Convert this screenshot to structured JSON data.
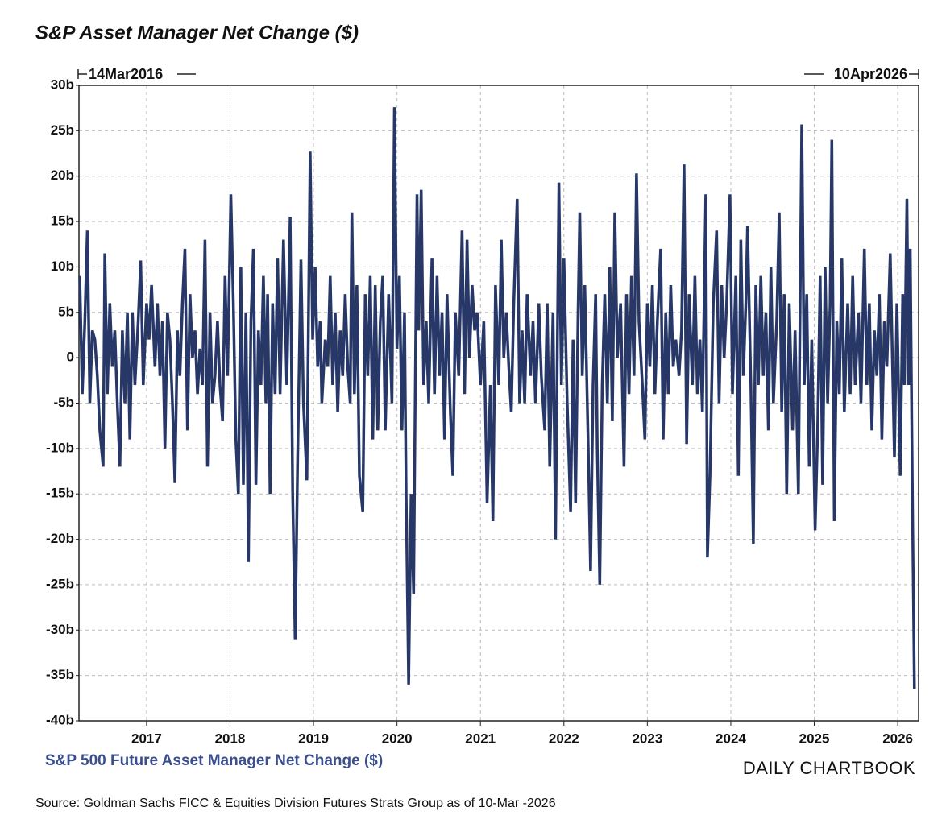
{
  "chart_data": {
    "type": "line",
    "title": "S&P Asset Manager Net Change ($)",
    "start_label": "14Mar2016",
    "end_label": "10Apr2026",
    "source": "Source: Goldman Sachs FICC & Equities Division Futures Strats Group as of 10-Mar -2026",
    "watermark": "DAILY CHARTBOOK",
    "xlim": [
      2016.19,
      2026.25
    ],
    "xticks": [
      2017,
      2018,
      2019,
      2020,
      2021,
      2022,
      2023,
      2024,
      2025,
      2026
    ],
    "ylim": [
      -40,
      30
    ],
    "yticks": [
      {
        "value": -40,
        "label": "-40b"
      },
      {
        "value": -35,
        "label": "-35b"
      },
      {
        "value": -30,
        "label": "-30b"
      },
      {
        "value": -25,
        "label": "-25b"
      },
      {
        "value": -20,
        "label": "-20b"
      },
      {
        "value": -15,
        "label": "-15b"
      },
      {
        "value": -10,
        "label": "-10b"
      },
      {
        "value": -5,
        "label": "-5b"
      },
      {
        "value": 0,
        "label": "0"
      },
      {
        "value": 5,
        "label": "5b"
      },
      {
        "value": 10,
        "label": "10b"
      },
      {
        "value": 15,
        "label": "15b"
      },
      {
        "value": 20,
        "label": "20b"
      },
      {
        "value": 25,
        "label": "25b"
      },
      {
        "value": 30,
        "label": "30b"
      }
    ],
    "grid": true,
    "x": [
      2016.2,
      2016.23,
      2016.26,
      2016.29,
      2016.32,
      2016.35,
      2016.38,
      2016.41,
      2016.44,
      2016.48,
      2016.5,
      2016.53,
      2016.56,
      2016.59,
      2016.62,
      2016.65,
      2016.68,
      2016.71,
      2016.74,
      2016.77,
      2016.8,
      2016.83,
      2016.86,
      2016.9,
      2016.93,
      2016.96,
      2017.0,
      2017.03,
      2017.06,
      2017.1,
      2017.13,
      2017.16,
      2017.19,
      2017.22,
      2017.25,
      2017.28,
      2017.31,
      2017.34,
      2017.37,
      2017.4,
      2017.43,
      2017.46,
      2017.49,
      2017.52,
      2017.55,
      2017.58,
      2017.61,
      2017.64,
      2017.67,
      2017.7,
      2017.73,
      2017.76,
      2017.79,
      2017.82,
      2017.85,
      2017.88,
      2017.91,
      2017.94,
      2017.97,
      2018.01,
      2018.04,
      2018.07,
      2018.1,
      2018.13,
      2018.16,
      2018.19,
      2018.22,
      2018.25,
      2018.28,
      2018.31,
      2018.34,
      2018.37,
      2018.4,
      2018.43,
      2018.45,
      2018.48,
      2018.51,
      2018.54,
      2018.57,
      2018.6,
      2018.64,
      2018.68,
      2018.72,
      2018.75,
      2018.78,
      2018.81,
      2018.85,
      2018.88,
      2018.92,
      2018.96,
      2018.99,
      2019.02,
      2019.05,
      2019.08,
      2019.1,
      2019.14,
      2019.17,
      2019.2,
      2019.23,
      2019.26,
      2019.29,
      2019.32,
      2019.35,
      2019.38,
      2019.41,
      2019.44,
      2019.46,
      2019.49,
      2019.52,
      2019.55,
      2019.59,
      2019.62,
      2019.65,
      2019.68,
      2019.71,
      2019.74,
      2019.77,
      2019.8,
      2019.83,
      2019.86,
      2019.9,
      2019.94,
      2019.97,
      2020.0,
      2020.03,
      2020.06,
      2020.09,
      2020.11,
      2020.14,
      2020.17,
      2020.2,
      2020.22,
      2020.24,
      2020.26,
      2020.29,
      2020.32,
      2020.35,
      2020.38,
      2020.42,
      2020.45,
      2020.48,
      2020.51,
      2020.54,
      2020.57,
      2020.6,
      2020.64,
      2020.67,
      2020.7,
      2020.74,
      2020.78,
      2020.81,
      2020.84,
      2020.87,
      2020.9,
      2020.93,
      2020.96,
      2021.0,
      2021.04,
      2021.08,
      2021.12,
      2021.15,
      2021.18,
      2021.22,
      2021.25,
      2021.28,
      2021.31,
      2021.34,
      2021.37,
      2021.4,
      2021.44,
      2021.47,
      2021.5,
      2021.53,
      2021.56,
      2021.6,
      2021.63,
      2021.66,
      2021.7,
      2021.73,
      2021.77,
      2021.8,
      2021.83,
      2021.87,
      2021.9,
      2021.94,
      2021.97,
      2022.0,
      2022.04,
      2022.08,
      2022.11,
      2022.14,
      2022.17,
      2022.19,
      2022.22,
      2022.25,
      2022.29,
      2022.32,
      2022.35,
      2022.38,
      2022.4,
      2022.43,
      2022.46,
      2022.49,
      2022.52,
      2022.55,
      2022.58,
      2022.61,
      2022.64,
      2022.68,
      2022.72,
      2022.75,
      2022.78,
      2022.81,
      2022.84,
      2022.87,
      2022.9,
      2022.94,
      2022.97,
      2023.0,
      2023.03,
      2023.06,
      2023.09,
      2023.12,
      2023.16,
      2023.19,
      2023.22,
      2023.25,
      2023.28,
      2023.31,
      2023.34,
      2023.38,
      2023.41,
      2023.44,
      2023.47,
      2023.5,
      2023.54,
      2023.57,
      2023.6,
      2023.63,
      2023.66,
      2023.7,
      2023.72,
      2023.75,
      2023.79,
      2023.83,
      2023.86,
      2023.89,
      2023.92,
      2023.95,
      2023.99,
      2024.02,
      2024.06,
      2024.09,
      2024.12,
      2024.15,
      2024.18,
      2024.2,
      2024.24,
      2024.27,
      2024.3,
      2024.33,
      2024.36,
      2024.39,
      2024.42,
      2024.45,
      2024.48,
      2024.51,
      2024.55,
      2024.58,
      2024.61,
      2024.64,
      2024.67,
      2024.7,
      2024.74,
      2024.77,
      2024.81,
      2024.85,
      2024.88,
      2024.91,
      2024.94,
      2024.97,
      2025.01,
      2025.04,
      2025.07,
      2025.1,
      2025.13,
      2025.16,
      2025.19,
      2025.21,
      2025.24,
      2025.27,
      2025.3,
      2025.33,
      2025.36,
      2025.4,
      2025.43,
      2025.46,
      2025.49,
      2025.53,
      2025.56,
      2025.6,
      2025.63,
      2025.66,
      2025.69,
      2025.72,
      2025.75,
      2025.78,
      2025.81,
      2025.84,
      2025.87,
      2025.91,
      2025.94,
      2025.96,
      2025.99,
      2026.03,
      2026.06,
      2026.08,
      2026.11,
      2026.13,
      2026.15,
      2026.18,
      2026.2
    ],
    "series": [
      {
        "name": "S&P 500 Future Asset Manager Net Change ($)",
        "color": "#263768",
        "values": [
          9,
          -4,
          4,
          14,
          -5,
          3,
          2,
          -2,
          -8,
          -12,
          11.5,
          -4,
          6,
          -1,
          3,
          -5,
          -12,
          3,
          -5,
          5,
          -9,
          5,
          -3,
          4,
          10.7,
          -3,
          6,
          2,
          8,
          -1,
          6,
          -2,
          4,
          -10,
          5,
          2,
          -5,
          -13.8,
          3,
          -2,
          6,
          12,
          -8,
          7,
          0,
          3,
          -4,
          1,
          -3,
          13,
          -12,
          5,
          -5,
          -2,
          4,
          -3,
          -7,
          9,
          -2,
          18,
          6,
          -9,
          -15,
          10,
          -14,
          5,
          -22.5,
          4,
          12,
          -14,
          3,
          -3,
          9,
          -5,
          7,
          -15,
          6,
          -4,
          11,
          -4,
          13,
          -3,
          15.5,
          -15,
          -31,
          -11,
          10.8,
          -5,
          -13.5,
          22.7,
          2,
          10,
          -1,
          4,
          -5,
          2,
          -1,
          9,
          -3,
          5,
          -6,
          3,
          -2,
          7,
          -1,
          -5,
          16,
          -4,
          8,
          -13,
          -17,
          7,
          -2,
          9,
          -9,
          8,
          -8,
          4,
          9,
          -8,
          7,
          -5,
          27.6,
          1,
          9,
          -8,
          5,
          -15,
          -36,
          -15,
          -26,
          -3,
          18,
          3,
          18.5,
          -3,
          4,
          -5,
          11,
          -4,
          9,
          -2,
          5,
          -9,
          7,
          -6,
          -13,
          5,
          -2,
          14,
          -4,
          13,
          0,
          8,
          3,
          5,
          -3,
          4,
          -16,
          -3,
          -18,
          8,
          -3,
          13,
          0,
          5,
          -1,
          -6,
          6,
          17.5,
          -5,
          3,
          -5,
          7,
          -2,
          4,
          -5,
          6,
          -2,
          -8,
          6,
          -12,
          5,
          -20,
          19.3,
          -3,
          11,
          -5,
          -17,
          2,
          -16,
          5,
          16,
          -2,
          8,
          -9,
          -23.5,
          -3,
          7,
          -10,
          -25,
          -3,
          7,
          -5,
          10,
          -7,
          16,
          0,
          6,
          -12,
          7,
          -4,
          9,
          -2,
          20.3,
          4,
          -3,
          -9,
          6,
          -1,
          8,
          -4,
          4,
          12,
          -9,
          5,
          -4,
          8,
          -1,
          2,
          -2,
          3,
          21.3,
          -9.5,
          7,
          -3,
          9,
          -4,
          2,
          -6,
          18,
          -22,
          -13,
          6,
          14,
          -5,
          8,
          0,
          6,
          18,
          -4,
          9,
          -13,
          13,
          -2,
          6,
          14.5,
          -3,
          -20.5,
          8,
          -3,
          9,
          -2,
          5,
          -8,
          10,
          -5,
          4,
          16,
          -6,
          7,
          -15,
          6,
          -8,
          3,
          -15,
          25.7,
          -3,
          7,
          -12,
          2,
          -19,
          -8,
          9,
          -14,
          10,
          -5,
          6,
          24,
          -18,
          4,
          -4,
          11,
          -6,
          6,
          -4,
          9,
          -3,
          5,
          -5,
          12,
          -3,
          6,
          -8,
          3,
          -2,
          7,
          -9,
          4,
          -1,
          11.5,
          -2,
          -11,
          6,
          -13,
          7,
          -3,
          17.5,
          -3,
          12,
          -19,
          -36.5
        ]
      }
    ]
  }
}
